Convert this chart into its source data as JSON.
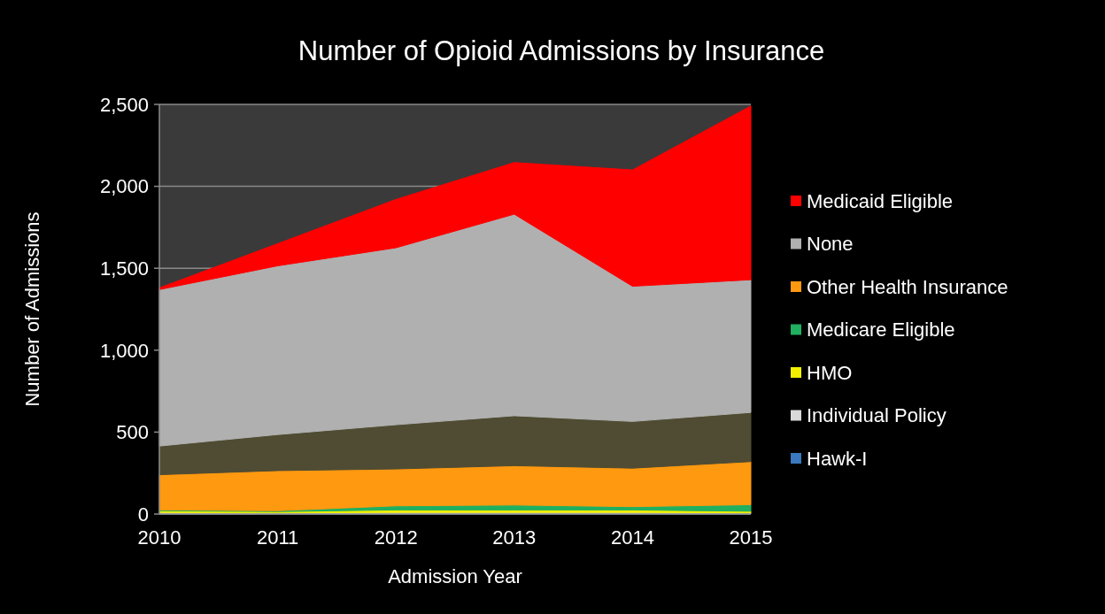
{
  "chart_data": {
    "type": "area",
    "stacked": true,
    "title": "Number of Opioid Admissions by Insurance",
    "xlabel": "Admission Year",
    "ylabel": "Number of Admissions",
    "categories": [
      "2010",
      "2011",
      "2012",
      "2013",
      "2014",
      "2015"
    ],
    "ylim": [
      0,
      2500
    ],
    "yticks": [
      {
        "value": 0,
        "label": "0"
      },
      {
        "value": 500,
        "label": "500"
      },
      {
        "value": 1000,
        "label": "1,000"
      },
      {
        "value": 1500,
        "label": "1,500"
      },
      {
        "value": 2000,
        "label": "2,000"
      },
      {
        "value": 2500,
        "label": "2,500"
      }
    ],
    "grid": "y",
    "legend": "right",
    "series": [
      {
        "name": "Hawk-I",
        "color": "#3a78c0",
        "values": [
          2,
          2,
          2,
          2,
          2,
          2
        ]
      },
      {
        "name": "Individual Policy",
        "color": "#d8d8d8",
        "values": [
          8,
          5,
          8,
          8,
          8,
          5
        ]
      },
      {
        "name": "HMO",
        "color": "#f0f000",
        "values": [
          10,
          8,
          15,
          15,
          15,
          10
        ]
      },
      {
        "name": "Medicare Eligible",
        "color": "#20b060",
        "values": [
          5,
          5,
          25,
          30,
          20,
          40
        ]
      },
      {
        "name": "Other Health Insurance",
        "color": "#ff9910",
        "values": [
          215,
          245,
          225,
          240,
          235,
          263
        ]
      },
      {
        "color": "#4f4c33",
        "values": [
          175,
          220,
          270,
          305,
          285,
          300
        ]
      },
      {
        "name": "None",
        "color": "#b0b0b0",
        "values": [
          955,
          1030,
          1080,
          1230,
          825,
          810
        ]
      },
      {
        "name": "Medicaid Eligible",
        "color": "#ff0000",
        "values": [
          10,
          135,
          295,
          315,
          710,
          1060
        ]
      }
    ]
  }
}
